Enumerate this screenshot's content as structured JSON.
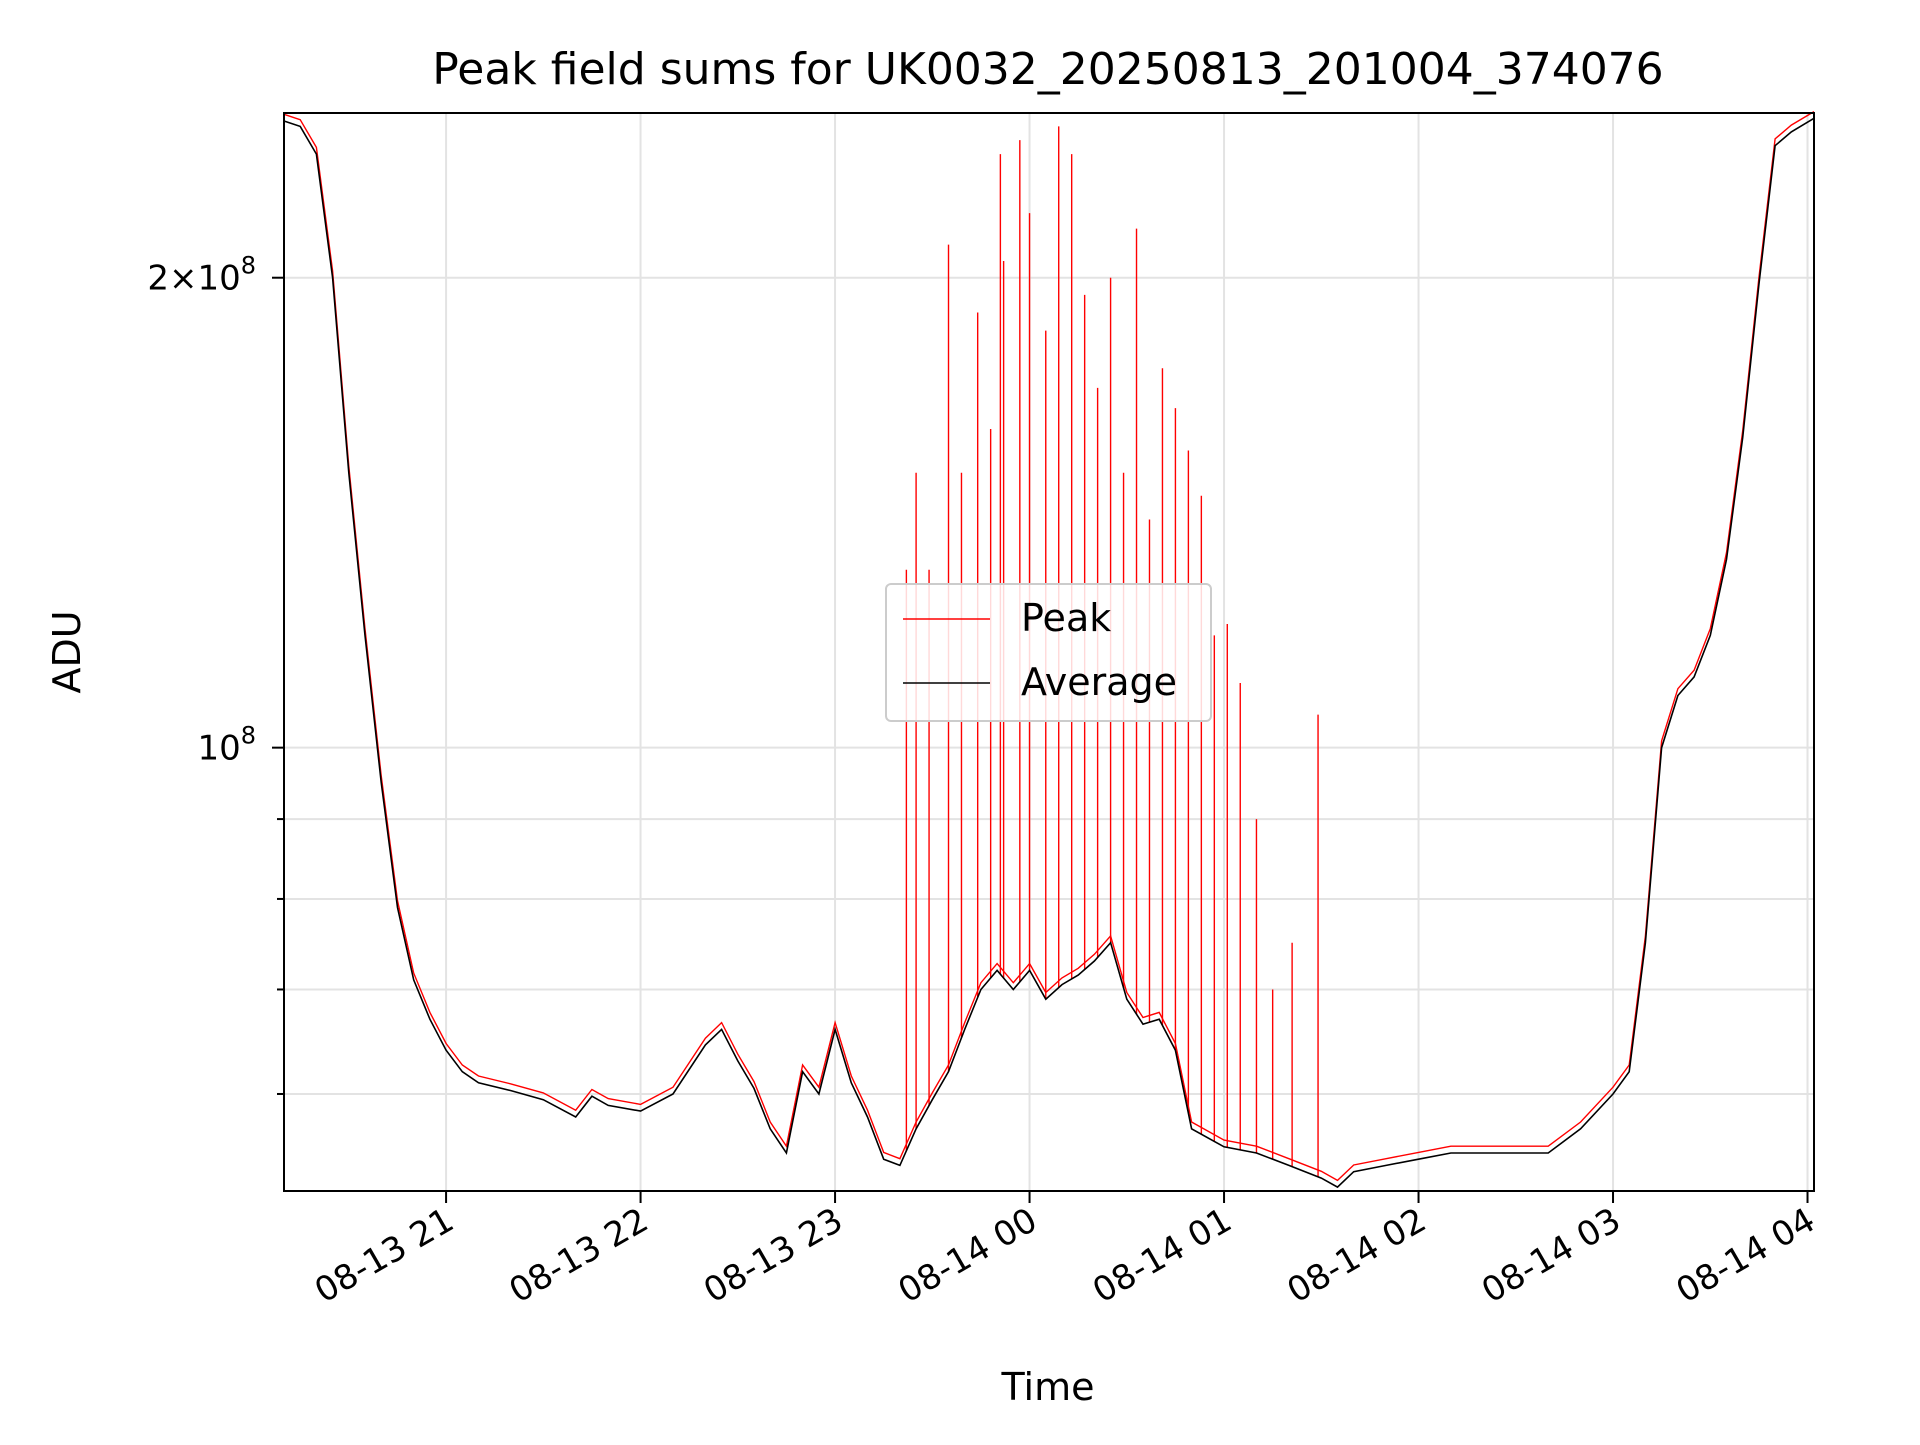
{
  "chart_data": {
    "type": "line",
    "title": "Peak field sums for UK0032_20250813_201004_374076",
    "xlabel": "Time",
    "ylabel": "ADU",
    "y_scale": "log",
    "ylim": [
      52000000,
      255000000
    ],
    "xlim": [
      "2025-08-13 20:10",
      "2025-08-14 04:02"
    ],
    "grid": true,
    "legend_position": "center",
    "x_ticks": [
      "08-13 21",
      "08-13 22",
      "08-13 23",
      "08-14 00",
      "08-14 01",
      "08-14 02",
      "08-14 03",
      "08-14 04"
    ],
    "x_tick_times": [
      "2025-08-13 21:00",
      "2025-08-13 22:00",
      "2025-08-13 23:00",
      "2025-08-14 00:00",
      "2025-08-14 01:00",
      "2025-08-14 02:00",
      "2025-08-14 03:00",
      "2025-08-14 04:00"
    ],
    "y_major_ticks": [
      {
        "value": 100000000,
        "base": "10",
        "exp": "8",
        "mantissa": ""
      },
      {
        "value": 200000000,
        "base": "10",
        "exp": "8",
        "mantissa": "2×"
      }
    ],
    "y_minor_ticks": [
      60000000,
      70000000,
      80000000,
      90000000
    ],
    "series": [
      {
        "name": "Average",
        "color": "#000000",
        "x": [
          "2025-08-13 20:10",
          "2025-08-13 20:15",
          "2025-08-13 20:20",
          "2025-08-13 20:25",
          "2025-08-13 20:30",
          "2025-08-13 20:35",
          "2025-08-13 20:40",
          "2025-08-13 20:45",
          "2025-08-13 20:50",
          "2025-08-13 20:55",
          "2025-08-13 21:00",
          "2025-08-13 21:05",
          "2025-08-13 21:10",
          "2025-08-13 21:20",
          "2025-08-13 21:30",
          "2025-08-13 21:40",
          "2025-08-13 21:45",
          "2025-08-13 21:50",
          "2025-08-13 22:00",
          "2025-08-13 22:10",
          "2025-08-13 22:20",
          "2025-08-13 22:25",
          "2025-08-13 22:30",
          "2025-08-13 22:35",
          "2025-08-13 22:40",
          "2025-08-13 22:45",
          "2025-08-13 22:50",
          "2025-08-13 22:55",
          "2025-08-13 23:00",
          "2025-08-13 23:05",
          "2025-08-13 23:10",
          "2025-08-13 23:15",
          "2025-08-13 23:20",
          "2025-08-13 23:25",
          "2025-08-13 23:30",
          "2025-08-13 23:35",
          "2025-08-13 23:40",
          "2025-08-13 23:45",
          "2025-08-13 23:50",
          "2025-08-13 23:55",
          "2025-08-14 00:00",
          "2025-08-14 00:05",
          "2025-08-14 00:10",
          "2025-08-14 00:15",
          "2025-08-14 00:20",
          "2025-08-14 00:25",
          "2025-08-14 00:30",
          "2025-08-14 00:35",
          "2025-08-14 00:40",
          "2025-08-14 00:45",
          "2025-08-14 00:50",
          "2025-08-14 01:00",
          "2025-08-14 01:10",
          "2025-08-14 01:20",
          "2025-08-14 01:30",
          "2025-08-14 01:35",
          "2025-08-14 01:40",
          "2025-08-14 01:50",
          "2025-08-14 02:00",
          "2025-08-14 02:10",
          "2025-08-14 02:20",
          "2025-08-14 02:30",
          "2025-08-14 02:40",
          "2025-08-14 02:50",
          "2025-08-14 03:00",
          "2025-08-14 03:05",
          "2025-08-14 03:10",
          "2025-08-14 03:15",
          "2025-08-14 03:20",
          "2025-08-14 03:25",
          "2025-08-14 03:30",
          "2025-08-14 03:35",
          "2025-08-14 03:40",
          "2025-08-14 03:45",
          "2025-08-14 03:50",
          "2025-08-14 03:55",
          "2025-08-14 04:02"
        ],
        "values": [
          252000000,
          250000000,
          240000000,
          200000000,
          150000000,
          118000000,
          95000000,
          79000000,
          71000000,
          67000000,
          64000000,
          62000000,
          61000000,
          60300000,
          59500000,
          58000000,
          59800000,
          59000000,
          58500000,
          60000000,
          64500000,
          66000000,
          63000000,
          60500000,
          57000000,
          55000000,
          62000000,
          60000000,
          66000000,
          61000000,
          58000000,
          54500000,
          54000000,
          57000000,
          59500000,
          62000000,
          66000000,
          70000000,
          72000000,
          70000000,
          72000000,
          69000000,
          70500000,
          71500000,
          73000000,
          75000000,
          69000000,
          66500000,
          67000000,
          64000000,
          57000000,
          55500000,
          55000000,
          54000000,
          53000000,
          52300000,
          53500000,
          54000000,
          54500000,
          55000000,
          55000000,
          55000000,
          55000000,
          57000000,
          60000000,
          62000000,
          75000000,
          100000000,
          108000000,
          111000000,
          118000000,
          132000000,
          158000000,
          198000000,
          243000000,
          248000000,
          253000000
        ]
      },
      {
        "name": "Peak",
        "color": "#ff0000",
        "spikes": [
          {
            "x": "2025-08-13 23:22",
            "y": 130000000
          },
          {
            "x": "2025-08-13 23:25",
            "y": 150000000
          },
          {
            "x": "2025-08-13 23:29",
            "y": 130000000
          },
          {
            "x": "2025-08-13 23:35",
            "y": 210000000
          },
          {
            "x": "2025-08-13 23:39",
            "y": 150000000
          },
          {
            "x": "2025-08-13 23:44",
            "y": 190000000
          },
          {
            "x": "2025-08-13 23:48",
            "y": 160000000
          },
          {
            "x": "2025-08-13 23:51",
            "y": 240000000
          },
          {
            "x": "2025-08-13 23:52",
            "y": 205000000
          },
          {
            "x": "2025-08-13 23:57",
            "y": 245000000
          },
          {
            "x": "2025-08-14 00:00",
            "y": 220000000
          },
          {
            "x": "2025-08-14 00:05",
            "y": 185000000
          },
          {
            "x": "2025-08-14 00:09",
            "y": 250000000
          },
          {
            "x": "2025-08-14 00:13",
            "y": 240000000
          },
          {
            "x": "2025-08-14 00:17",
            "y": 195000000
          },
          {
            "x": "2025-08-14 00:21",
            "y": 170000000
          },
          {
            "x": "2025-08-14 00:25",
            "y": 200000000
          },
          {
            "x": "2025-08-14 00:29",
            "y": 150000000
          },
          {
            "x": "2025-08-14 00:33",
            "y": 215000000
          },
          {
            "x": "2025-08-14 00:37",
            "y": 140000000
          },
          {
            "x": "2025-08-14 00:41",
            "y": 175000000
          },
          {
            "x": "2025-08-14 00:45",
            "y": 165000000
          },
          {
            "x": "2025-08-14 00:49",
            "y": 155000000
          },
          {
            "x": "2025-08-14 00:53",
            "y": 145000000
          },
          {
            "x": "2025-08-14 00:57",
            "y": 118000000
          },
          {
            "x": "2025-08-14 01:01",
            "y": 120000000
          },
          {
            "x": "2025-08-14 01:05",
            "y": 110000000
          },
          {
            "x": "2025-08-14 01:10",
            "y": 90000000
          },
          {
            "x": "2025-08-14 01:15",
            "y": 70000000
          },
          {
            "x": "2025-08-14 01:21",
            "y": 75000000
          },
          {
            "x": "2025-08-14 01:29",
            "y": 105000000
          }
        ]
      }
    ]
  }
}
